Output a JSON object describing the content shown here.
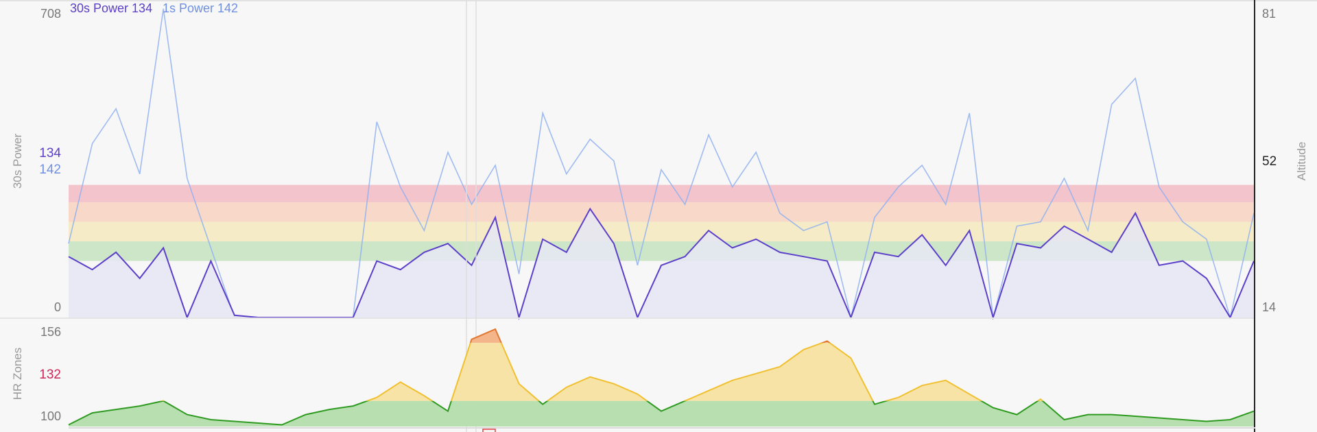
{
  "legend": {
    "power30_label": "30s Power 134",
    "power1_label": "1s Power 142"
  },
  "left_axis": {
    "title": "30s Power",
    "max_label": "708",
    "zero_label": "0",
    "current_30s": "134",
    "current_1s": "142"
  },
  "right_axis": {
    "title": "Altitude",
    "max_label": "81",
    "current_label": "52",
    "min_label": "14"
  },
  "hr_axis": {
    "title": "HR Zones",
    "max_label": "156",
    "current_label": "132",
    "min_label": "100"
  },
  "colors": {
    "power30": "#5b3fc9",
    "power1": "#8fb0f0",
    "power_fill": "#e6e6f4",
    "zone_red": "#f4c4cc",
    "zone_orange": "#f8d8c8",
    "zone_yellow": "#f5ebc6",
    "zone_green": "#cde6c8",
    "hr_green_line": "#2e9a20",
    "hr_green_fill": "#b7dfb0",
    "hr_yellow_fill": "#f7e3a6",
    "hr_yellow_line": "#f0c030",
    "hr_orange_fill": "#f5b58a",
    "hr_orange_line": "#e2772f",
    "current_30s_color": "#5b3fc9",
    "current_1s_color": "#6f8fe0",
    "hr_current_color": "#c8285a"
  },
  "chart_data": [
    {
      "type": "line",
      "name": "power",
      "x": [
        0,
        2,
        4,
        6,
        8,
        10,
        12,
        14,
        16,
        18,
        20,
        22,
        24,
        26,
        28,
        30,
        32,
        34,
        36,
        38,
        40,
        42,
        44,
        46,
        48,
        50,
        52,
        54,
        56,
        58,
        60,
        62,
        64,
        66,
        68,
        70,
        72,
        74,
        76,
        78,
        80,
        82,
        84,
        86,
        88,
        90,
        92,
        94,
        96,
        98,
        100
      ],
      "ylim": [
        0,
        708
      ],
      "zone_bounds": [
        130,
        175,
        220,
        265,
        305
      ],
      "series": [
        {
          "name": "30s Power",
          "values": [
            140,
            110,
            150,
            90,
            160,
            0,
            130,
            5,
            0,
            0,
            0,
            0,
            0,
            130,
            110,
            150,
            170,
            120,
            230,
            0,
            180,
            150,
            250,
            170,
            0,
            120,
            140,
            200,
            160,
            180,
            150,
            140,
            130,
            0,
            150,
            140,
            190,
            120,
            200,
            0,
            170,
            160,
            210,
            180,
            150,
            240,
            120,
            130,
            90,
            0,
            130
          ]
        },
        {
          "name": "1s Power",
          "values": [
            170,
            400,
            480,
            330,
            710,
            320,
            160,
            0,
            0,
            0,
            0,
            0,
            0,
            450,
            300,
            200,
            380,
            260,
            350,
            100,
            470,
            330,
            410,
            360,
            120,
            340,
            260,
            420,
            300,
            380,
            240,
            200,
            220,
            0,
            230,
            300,
            350,
            260,
            470,
            0,
            210,
            220,
            320,
            200,
            490,
            550,
            300,
            220,
            180,
            0,
            240
          ]
        }
      ]
    },
    {
      "type": "area",
      "name": "HR Zones",
      "x": [
        0,
        2,
        4,
        6,
        8,
        10,
        12,
        14,
        16,
        18,
        20,
        22,
        24,
        26,
        28,
        30,
        32,
        34,
        36,
        38,
        40,
        42,
        44,
        46,
        48,
        50,
        52,
        54,
        56,
        58,
        60,
        62,
        64,
        66,
        68,
        70,
        72,
        74,
        76,
        78,
        80,
        82,
        84,
        86,
        88,
        90,
        92,
        94,
        96,
        98,
        100
      ],
      "ylim": [
        97,
        158
      ],
      "zone_thresholds": [
        112,
        146
      ],
      "values": [
        98,
        105,
        107,
        109,
        112,
        104,
        101,
        100,
        99,
        98,
        104,
        107,
        109,
        114,
        123,
        115,
        106,
        148,
        154,
        122,
        110,
        120,
        126,
        122,
        116,
        106,
        112,
        118,
        124,
        128,
        132,
        142,
        147,
        137,
        110,
        114,
        121,
        124,
        116,
        108,
        104,
        113,
        101,
        104,
        104,
        103,
        102,
        101,
        100,
        101,
        106
      ]
    }
  ]
}
